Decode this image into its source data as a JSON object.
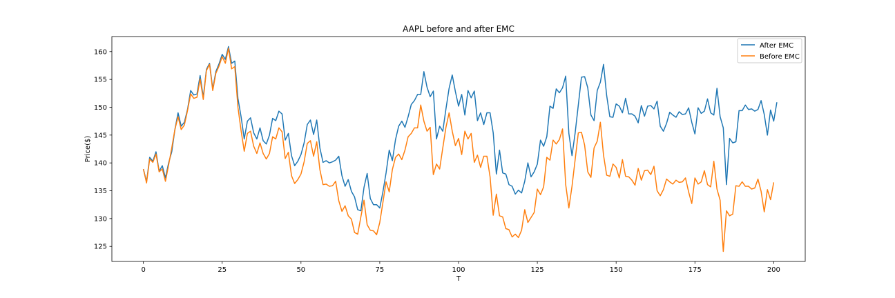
{
  "chart_data": {
    "type": "line",
    "title": "AAPL before and after EMC",
    "xlabel": "T",
    "ylabel": "Price($)",
    "xlim": [
      -10,
      210
    ],
    "ylim": [
      122.3,
      162.7
    ],
    "xticks": [
      0,
      25,
      50,
      75,
      100,
      125,
      150,
      175,
      200
    ],
    "yticks": [
      125,
      130,
      135,
      140,
      145,
      150,
      155,
      160
    ],
    "legend_position": "top-right",
    "grid": false,
    "series": [
      {
        "name": "After EMC",
        "color": "#1f77b4",
        "values": [
          138.9,
          136.6,
          141.0,
          140.3,
          142.0,
          138.5,
          139.5,
          137.3,
          140.0,
          142.0,
          146.0,
          149.0,
          146.6,
          147.3,
          149.6,
          153.0,
          152.2,
          152.4,
          155.7,
          151.8,
          156.8,
          157.9,
          153.3,
          156.4,
          157.8,
          159.5,
          158.6,
          160.9,
          157.9,
          158.3,
          151.6,
          148.3,
          144.3,
          147.5,
          148.1,
          145.4,
          144.3,
          146.3,
          144.0,
          143.4,
          145.0,
          148.0,
          147.6,
          149.3,
          148.8,
          144.1,
          145.3,
          141.3,
          139.5,
          140.3,
          141.5,
          143.6,
          146.9,
          147.7,
          145.1,
          147.7,
          142.7,
          140.1,
          140.4,
          140.0,
          140.2,
          140.5,
          141.2,
          137.7,
          135.8,
          137.0,
          134.9,
          133.9,
          131.6,
          131.4,
          135.6,
          138.1,
          133.6,
          132.5,
          132.5,
          131.9,
          134.8,
          138.2,
          142.3,
          140.4,
          144.2,
          146.6,
          147.5,
          146.4,
          148.3,
          150.5,
          151.2,
          152.3,
          152.3,
          156.4,
          153.6,
          151.9,
          152.9,
          144.3,
          146.6,
          145.7,
          149.7,
          153.4,
          155.8,
          152.8,
          150.2,
          152.3,
          148.6,
          153.0,
          151.7,
          152.9,
          147.6,
          149.0,
          146.9,
          149.0,
          149.0,
          145.4,
          138.0,
          142.3,
          138.2,
          138.0,
          136.1,
          135.8,
          134.4,
          135.1,
          134.6,
          136.7,
          140.0,
          137.5,
          138.4,
          139.8,
          144.1,
          143.0,
          144.7,
          150.2,
          149.8,
          153.3,
          152.6,
          153.5,
          155.6,
          145.3,
          141.3,
          145.4,
          150.4,
          155.4,
          155.5,
          153.5,
          148.6,
          147.6,
          153.0,
          154.5,
          157.7,
          152.1,
          148.3,
          148.2,
          150.6,
          150.2,
          149.0,
          151.6,
          148.8,
          148.8,
          148.4,
          147.2,
          150.3,
          148.4,
          150.2,
          150.3,
          149.7,
          151.1,
          146.6,
          145.7,
          147.1,
          149.1,
          148.6,
          148.2,
          149.2,
          148.7,
          148.8,
          149.9,
          147.3,
          145.2,
          149.9,
          148.9,
          149.3,
          151.5,
          149.0,
          148.6,
          153.4,
          148.3,
          146.3,
          136.1,
          144.4,
          143.6,
          143.8,
          149.4,
          149.4,
          150.4,
          149.6,
          149.7,
          149.3,
          149.6,
          151.2,
          148.7,
          145.0,
          149.5,
          147.5,
          150.9
        ]
      },
      {
        "name": "Before EMC",
        "color": "#ff7f0e",
        "values": [
          138.9,
          136.4,
          140.7,
          140.1,
          141.6,
          138.4,
          138.9,
          136.7,
          139.6,
          142.7,
          146.0,
          148.3,
          146.0,
          146.8,
          149.4,
          152.4,
          151.6,
          151.8,
          155.1,
          151.4,
          156.6,
          157.7,
          153.0,
          156.1,
          157.4,
          159.1,
          157.9,
          160.6,
          156.9,
          157.3,
          150.0,
          145.8,
          142.1,
          145.3,
          145.7,
          143.0,
          141.7,
          143.6,
          141.7,
          140.7,
          141.7,
          144.7,
          144.3,
          146.3,
          145.6,
          140.8,
          141.9,
          137.7,
          136.3,
          137.0,
          138.0,
          140.2,
          143.5,
          144.0,
          141.2,
          143.8,
          138.8,
          136.1,
          136.2,
          135.8,
          135.9,
          136.7,
          133.2,
          131.3,
          132.3,
          130.5,
          129.9,
          127.5,
          127.2,
          130.3,
          133.3,
          128.9,
          127.9,
          127.8,
          127.1,
          129.3,
          132.9,
          136.6,
          134.8,
          138.8,
          141.0,
          141.6,
          140.6,
          142.3,
          144.7,
          145.3,
          146.3,
          146.3,
          150.4,
          147.5,
          145.7,
          146.4,
          137.9,
          139.8,
          138.9,
          142.7,
          146.4,
          149.0,
          145.7,
          143.1,
          144.4,
          141.5,
          145.7,
          144.3,
          145.3,
          140.1,
          141.4,
          139.2,
          141.2,
          141.2,
          137.5,
          130.6,
          134.4,
          130.5,
          130.3,
          128.2,
          128.0,
          126.7,
          127.2,
          126.6,
          127.9,
          131.6,
          129.3,
          130.2,
          131.1,
          135.3,
          134.3,
          135.7,
          141.0,
          140.5,
          144.1,
          143.4,
          144.2,
          146.1,
          136.1,
          131.9,
          135.8,
          140.6,
          145.4,
          145.5,
          143.2,
          138.4,
          137.4,
          142.7,
          143.9,
          147.3,
          141.4,
          137.8,
          137.6,
          139.8,
          139.2,
          137.3,
          140.6,
          137.6,
          137.5,
          136.9,
          136.0,
          139.0,
          136.9,
          138.6,
          138.7,
          137.9,
          139.4,
          135.0,
          134.1,
          135.2,
          137.1,
          136.6,
          136.2,
          136.9,
          136.5,
          136.6,
          137.3,
          134.8,
          132.7,
          137.3,
          136.2,
          136.6,
          138.6,
          136.1,
          135.7,
          140.3,
          135.3,
          133.3,
          124.1,
          131.4,
          130.5,
          130.8,
          135.9,
          135.8,
          136.6,
          135.8,
          135.8,
          135.3,
          135.5,
          137.1,
          134.9,
          131.2,
          135.2,
          133.4,
          136.5
        ]
      }
    ]
  }
}
